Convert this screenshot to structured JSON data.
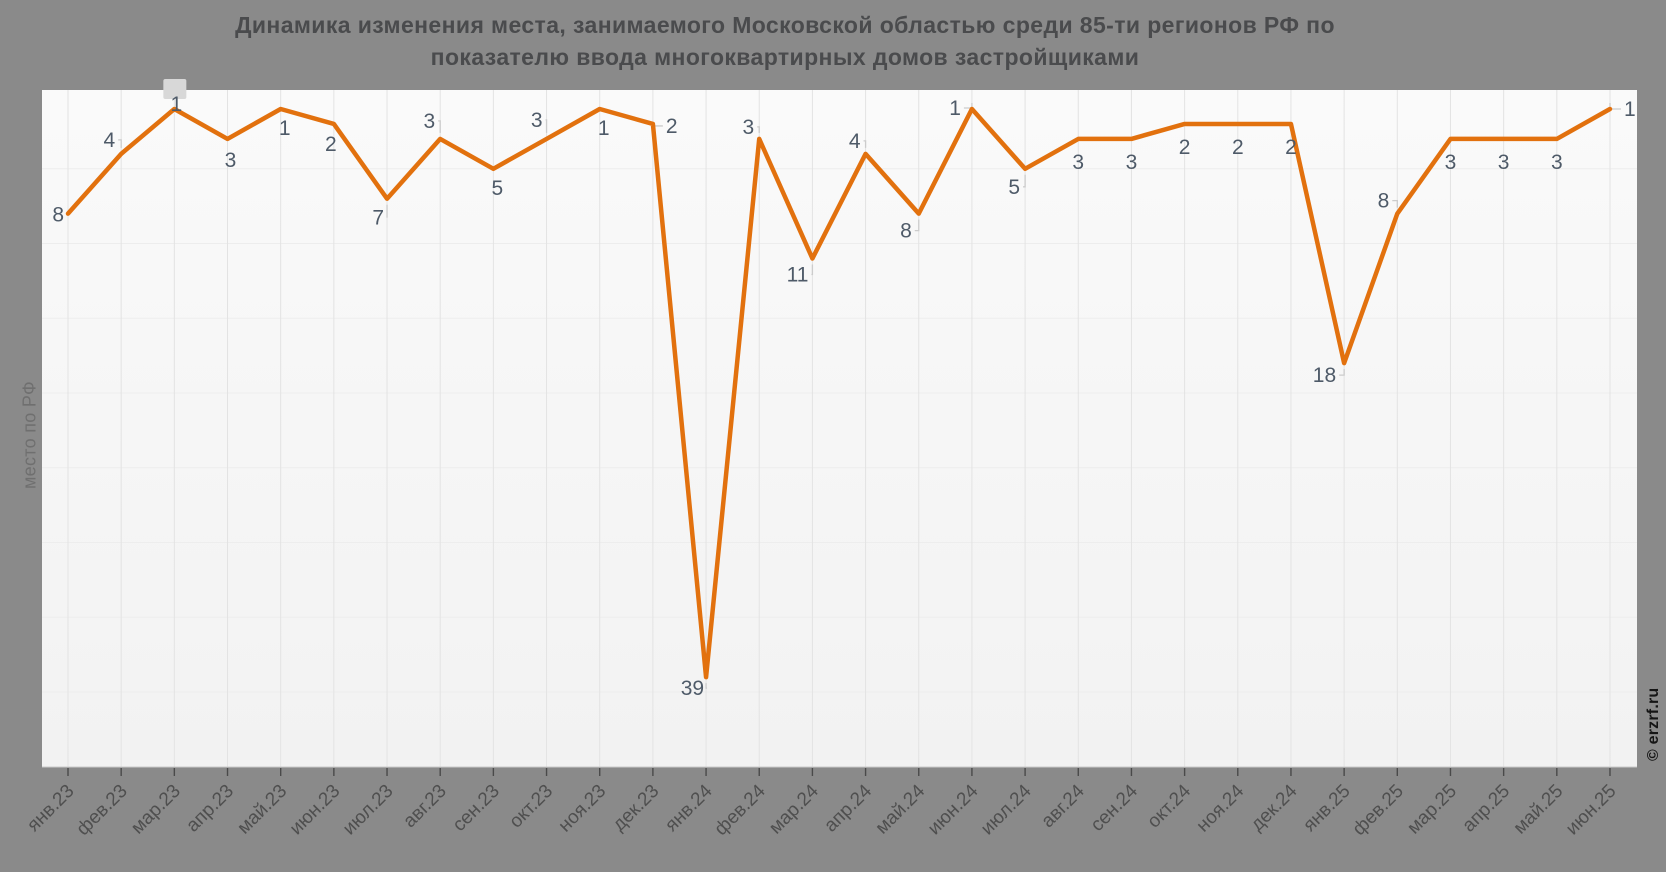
{
  "title": {
    "line1": "Динамика изменения места, занимаемого Московской областью среди 85-ти регионов РФ по",
    "line2": "показателю ввода многоквартирных домов застройщиками"
  },
  "watermark": "© erzrf.ru",
  "chart_data": {
    "type": "line",
    "title": "Динамика изменения места, занимаемого Московской областью среди 85-ти регионов РФ по показателю ввода многоквартирных домов застройщиками",
    "xlabel": "",
    "ylabel": "место по РФ",
    "y_inverted": true,
    "ylim": [
      1,
      42
    ],
    "grid": true,
    "legend_position": "none",
    "categories": [
      "янв.23",
      "фев.23",
      "мар.23",
      "апр.23",
      "май.23",
      "июн.23",
      "июл.23",
      "авг.23",
      "сен.23",
      "окт.23",
      "ноя.23",
      "дек.23",
      "янв.24",
      "фев.24",
      "мар.24",
      "апр.24",
      "май.24",
      "июн.24",
      "июл.24",
      "авг.24",
      "сен.24",
      "окт.24",
      "ноя.24",
      "дек.24",
      "янв.25",
      "фев.25",
      "мар.25",
      "апр.25",
      "май.25",
      "июн.25"
    ],
    "values": [
      8,
      4,
      1,
      3,
      1,
      2,
      7,
      3,
      5,
      3,
      1,
      2,
      39,
      3,
      11,
      4,
      8,
      1,
      5,
      3,
      3,
      2,
      2,
      2,
      18,
      8,
      3,
      3,
      3,
      1
    ],
    "series_name": "место по РФ",
    "point_labels_visible": true,
    "highlight_index": 2,
    "label_placement": [
      [
        -4,
        8,
        "end"
      ],
      [
        -6,
        -7,
        "end"
      ],
      [
        2,
        2,
        "middle"
      ],
      [
        3,
        28,
        "middle"
      ],
      [
        4,
        26,
        "middle"
      ],
      [
        -3,
        27,
        "middle"
      ],
      [
        -3,
        26,
        "end"
      ],
      [
        -5,
        -11,
        "end"
      ],
      [
        4,
        26,
        "middle"
      ],
      [
        -4,
        -12,
        "end"
      ],
      [
        4,
        26,
        "middle"
      ],
      [
        13,
        9,
        "start"
      ],
      [
        -2,
        18,
        "end"
      ],
      [
        -5,
        -5,
        "end"
      ],
      [
        -4,
        23,
        "end"
      ],
      [
        -5,
        -6,
        "end"
      ],
      [
        -7,
        24,
        "end"
      ],
      [
        -11,
        6,
        "end"
      ],
      [
        -5,
        25,
        "end"
      ],
      [
        0,
        30,
        "middle"
      ],
      [
        0,
        30,
        "middle"
      ],
      [
        0,
        30,
        "middle"
      ],
      [
        0,
        30,
        "middle"
      ],
      [
        0,
        30,
        "middle"
      ],
      [
        -8,
        19,
        "end"
      ],
      [
        -8,
        -6,
        "end"
      ],
      [
        0,
        30,
        "middle"
      ],
      [
        0,
        30,
        "middle"
      ],
      [
        0,
        30,
        "middle"
      ],
      [
        14,
        7,
        "start"
      ]
    ],
    "colors": {
      "page_bg": "#8a8a8a",
      "plot_bg_top": "#fafafa",
      "plot_bg_bottom": "#f2f2f2",
      "line": "#e2710e",
      "value_label": "#4e5a68",
      "x_axis_label": "#4f4f4f",
      "y_axis_title": "#6f6f6f",
      "title": "#4a4b4d",
      "watermark": "#151515",
      "v_gridline": "#e3e3e3",
      "h_gridline": "#ededed",
      "axis_edge": "#c9c9c9",
      "tick": "#4a4a4a",
      "connector": "#cccccc",
      "highlight_box": "#d8d8d8"
    }
  }
}
